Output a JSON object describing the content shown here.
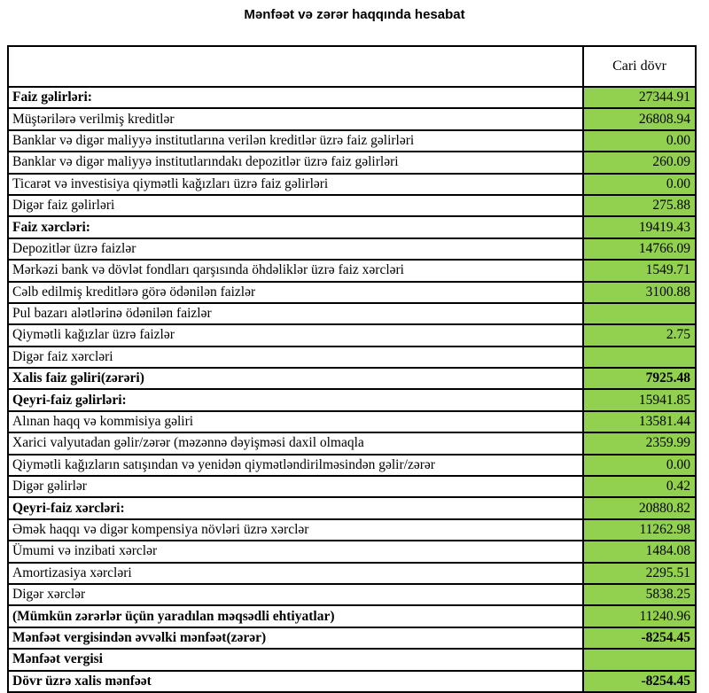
{
  "page_title": "Mənfəət və zərər haqqında hesabat",
  "colors": {
    "value_cell_bg": "#92D050",
    "border": "#000000"
  },
  "table": {
    "label_header": "",
    "value_header": "Cari dövr",
    "rows": [
      {
        "label": "Faiz gəlirləri:",
        "value": "27344.91",
        "bold_label": true,
        "bold_value": false
      },
      {
        "label": "Müştərilərə verilmiş kreditlər",
        "value": "26808.94",
        "bold_label": false,
        "bold_value": false
      },
      {
        "label": "Banklar və digər maliyyə institutlarına verilən kreditlər üzrə faiz gəlirləri",
        "value": "0.00",
        "bold_label": false,
        "bold_value": false
      },
      {
        "label": "Banklar və digər maliyyə institutlarındakı depozitlər üzrə faiz gəlirləri",
        "value": "260.09",
        "bold_label": false,
        "bold_value": false
      },
      {
        "label": "Ticarət və investisiya qiymətli kağızları üzrə faiz gəlirləri",
        "value": "0.00",
        "bold_label": false,
        "bold_value": false
      },
      {
        "label": "Digər faiz gəlirləri",
        "value": "275.88",
        "bold_label": false,
        "bold_value": false
      },
      {
        "label": "Faiz xərcləri:",
        "value": "19419.43",
        "bold_label": true,
        "bold_value": false
      },
      {
        "label": "Depozitlər üzrə faizlər",
        "value": "14766.09",
        "bold_label": false,
        "bold_value": false
      },
      {
        "label": "Mərkəzi bank və dövlət fondları qarşısında öhdəliklər üzrə faiz xərcləri",
        "value": "1549.71",
        "bold_label": false,
        "bold_value": false
      },
      {
        "label": "Cəlb edilmiş kreditlərə görə ödənilən faizlər",
        "value": "3100.88",
        "bold_label": false,
        "bold_value": false
      },
      {
        "label": "Pul bazarı alətlərinə ödənilən faizlər",
        "value": "",
        "bold_label": false,
        "bold_value": false
      },
      {
        "label": "Qiymətli kağızlar üzrə faizlər",
        "value": "2.75",
        "bold_label": false,
        "bold_value": false
      },
      {
        "label": "Digər faiz xərcləri",
        "value": "",
        "bold_label": false,
        "bold_value": false
      },
      {
        "label": "Xalis faiz gəliri(zərəri)",
        "value": "7925.48",
        "bold_label": true,
        "bold_value": true
      },
      {
        "label": "Qeyri-faiz gəlirləri:",
        "value": "15941.85",
        "bold_label": true,
        "bold_value": false
      },
      {
        "label": "Alınan haqq və kommisiya gəliri",
        "value": "13581.44",
        "bold_label": false,
        "bold_value": false
      },
      {
        "label": "Xarici valyutadan gəlir/zərər (məzənnə dəyişməsi daxil olmaqla",
        "value": "2359.99",
        "bold_label": false,
        "bold_value": false
      },
      {
        "label": "Qiymətli kağızların satışından və yenidən qiymətləndirilməsindən gəlir/zərər",
        "value": "0.00",
        "bold_label": false,
        "bold_value": false
      },
      {
        "label": "Digər gəlirlər",
        "value": "0.42",
        "bold_label": false,
        "bold_value": false
      },
      {
        "label": "Qeyri-faiz xərcləri:",
        "value": "20880.82",
        "bold_label": true,
        "bold_value": false
      },
      {
        "label": "Əmək haqqı və digər kompensiya növləri üzrə xərclər",
        "value": "11262.98",
        "bold_label": false,
        "bold_value": false
      },
      {
        "label": "Ümumi və inzibati xərclər",
        "value": "1484.08",
        "bold_label": false,
        "bold_value": false
      },
      {
        "label": "Amortizasiya xərcləri",
        "value": "2295.51",
        "bold_label": false,
        "bold_value": false
      },
      {
        "label": "Digər xərclər",
        "value": "5838.25",
        "bold_label": false,
        "bold_value": false
      },
      {
        "label": "(Mümkün zərərlər üçün yaradılan məqsədli ehtiyatlar)",
        "value": "11240.96",
        "bold_label": true,
        "bold_value": false
      },
      {
        "label": "Mənfəət vergisindən əvvəlki mənfəət(zərər)",
        "value": "-8254.45",
        "bold_label": true,
        "bold_value": true
      },
      {
        "label": "Mənfəət vergisi",
        "value": "",
        "bold_label": true,
        "bold_value": false
      },
      {
        "label": "Dövr üzrə xalis mənfəət",
        "value": "-8254.45",
        "bold_label": true,
        "bold_value": true
      }
    ]
  }
}
